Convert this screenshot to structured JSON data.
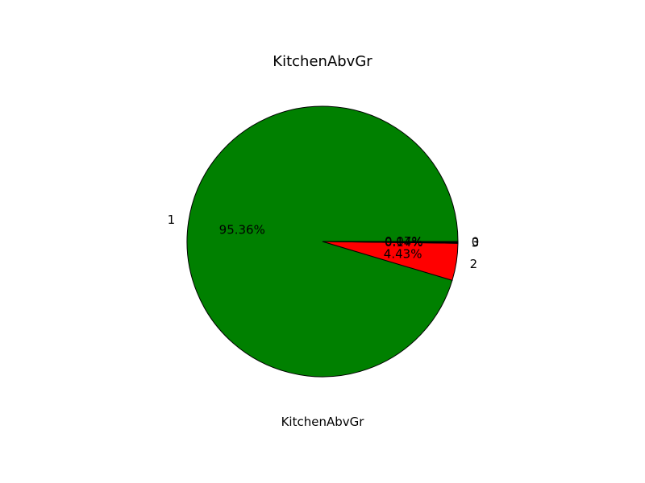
{
  "chart_data": {
    "type": "pie",
    "title": "KitchenAbvGr",
    "xlabel": "KitchenAbvGr",
    "ylabel": "",
    "categories": [
      "1",
      "2",
      "3",
      "0"
    ],
    "values": [
      95.36,
      4.43,
      0.14,
      0.07
    ],
    "value_labels": [
      "95.36%",
      "4.43%",
      "0.14%",
      "0.07%"
    ],
    "colors": [
      "#008000",
      "#ff0000",
      "#000000",
      "#000080"
    ],
    "start_angle_deg": 0,
    "direction": "counterclockwise",
    "edge_color": "#000000",
    "legend": "none"
  }
}
